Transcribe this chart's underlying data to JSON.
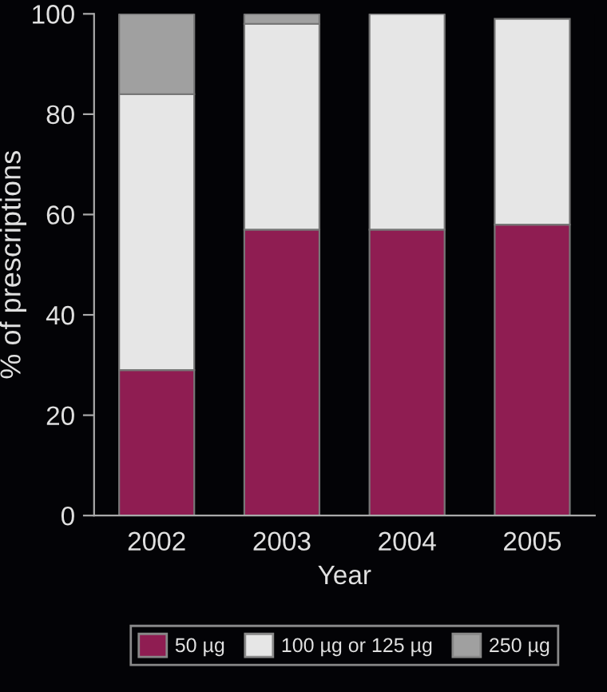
{
  "chart_data": {
    "type": "bar",
    "stacked": true,
    "xlabel": "Year",
    "ylabel": "% of prescriptions",
    "categories": [
      "2002",
      "2003",
      "2004",
      "2005"
    ],
    "series": [
      {
        "name": "50 µg",
        "color": "#8f1d52",
        "values": [
          29,
          57,
          57,
          58
        ]
      },
      {
        "name": "100 µg or 125 µg",
        "color": "#e6e6e6",
        "values": [
          55,
          41,
          43,
          41
        ]
      },
      {
        "name": "250 µg",
        "color": "#a0a0a0",
        "values": [
          16,
          2,
          0,
          0
        ]
      }
    ],
    "ylim": [
      0,
      100
    ],
    "yticks": [
      0,
      20,
      40,
      60,
      80,
      100
    ],
    "grid": false,
    "legend": "bottom"
  }
}
